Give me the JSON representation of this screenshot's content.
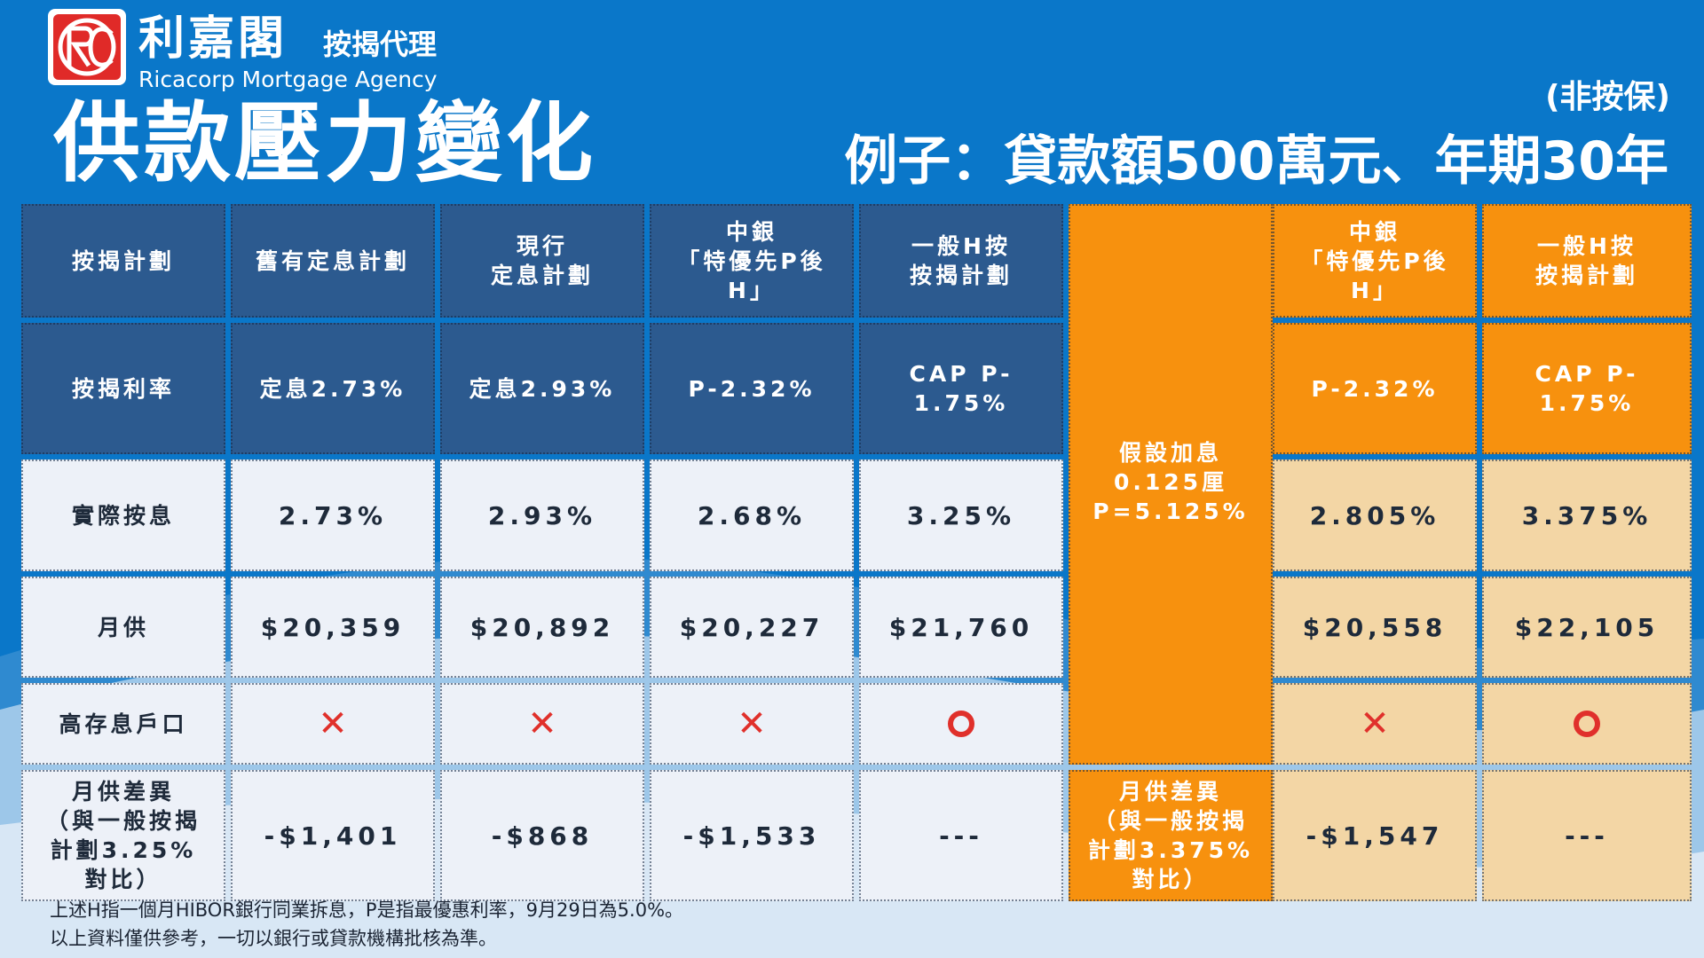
{
  "header": {
    "brand_cn": "利嘉閣",
    "brand_cn_sub": "按揭代理",
    "brand_en": "Ricacorp Mortgage Agency",
    "title": "供款壓力變化",
    "non_insured": "(非按保)",
    "example": "例子：貸款額500萬元、年期30年"
  },
  "colors": {
    "background": "#0a77c9",
    "header_cell": "#2c5a8f",
    "orange": "#f7910e",
    "tan": "#f3d6a5",
    "mark": "#e0302b"
  },
  "table": {
    "columns": [
      "按揭計劃",
      "舊有定息計劃",
      "現行\n定息計劃",
      "中銀\n「特優先P後\nH」",
      "一般H按\n按揭計劃",
      "",
      "中銀\n「特優先P後\nH」",
      "一般H按\n按揭計劃"
    ],
    "rate_row": [
      "按揭利率",
      "定息2.73%",
      "定息2.93%",
      "P-2.32%",
      "CAP P-\n1.75%",
      "P-2.32%",
      "CAP P-\n1.75%"
    ],
    "actual_row": [
      "實際按息",
      "2.73%",
      "2.93%",
      "2.68%",
      "3.25%",
      "2.805%",
      "3.375%"
    ],
    "monthly_row": [
      "月供",
      "$20,359",
      "$20,892",
      "$20,227",
      "$21,760",
      "$20,558",
      "$22,105"
    ],
    "deposit_row": {
      "label": "高存息戶口",
      "marks": [
        "cross-icon",
        "cross-icon",
        "cross-icon",
        "circle-icon",
        "cross-icon",
        "circle-icon"
      ],
      "cross_symbol": "✕"
    },
    "diff_row": {
      "label": "月供差異\n（與一般按揭\n計劃3.25%\n對比）",
      "values": [
        "-$1,401",
        "-$868",
        "-$1,533",
        "---",
        "-$1,547",
        "---"
      ]
    },
    "scenario": "假設加息\n0.125厘\nP=5.125%",
    "scenario_diff": "月供差異\n（與一般按揭\n計劃3.375%\n對比）"
  },
  "footnotes": [
    "上述H指一個月HIBOR銀行同業拆息，P是指最優惠利率，9月29日為5.0%。",
    "以上資料僅供參考，一切以銀行或貸款機構批核為準。"
  ]
}
